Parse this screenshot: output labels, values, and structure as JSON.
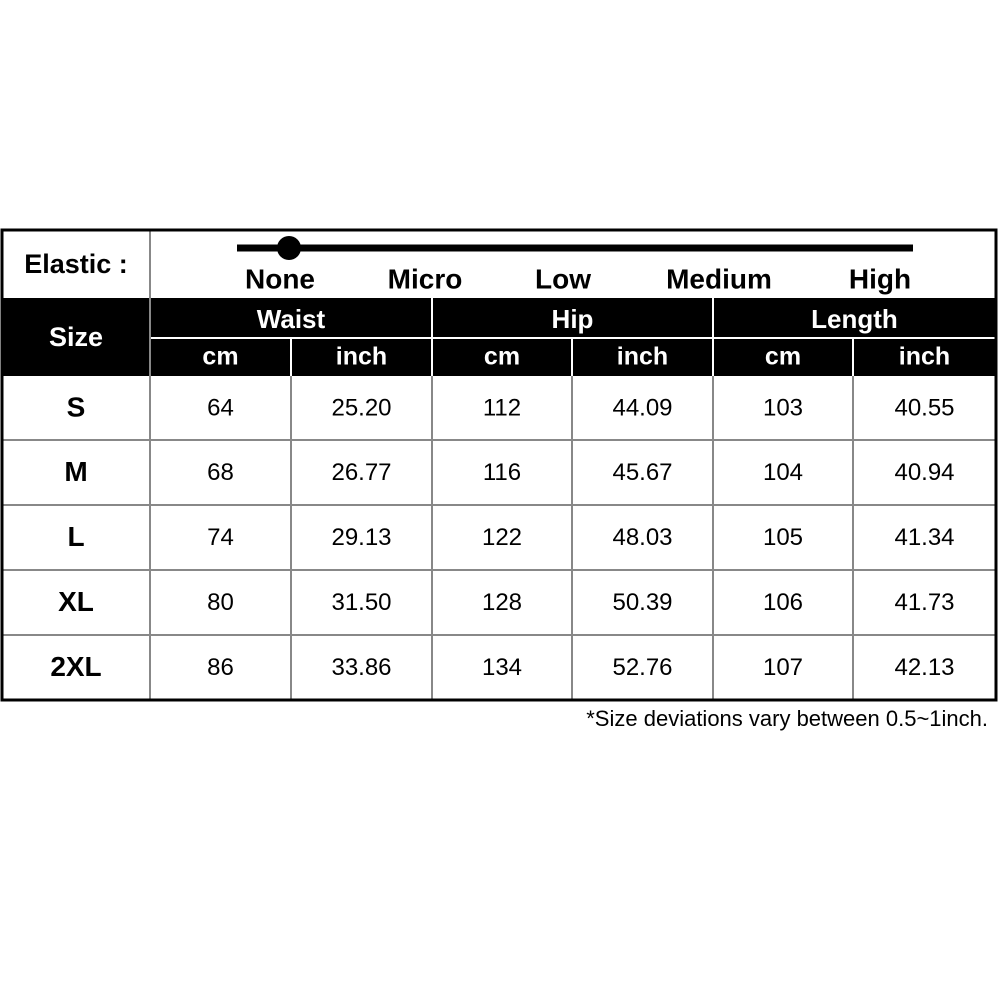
{
  "elastic": {
    "label": "Elastic :",
    "levels": [
      "None",
      "Micro",
      "Low",
      "Medium",
      "High"
    ]
  },
  "table": {
    "size_label": "Size",
    "groups": [
      {
        "name": "Waist",
        "units": [
          "cm",
          "inch"
        ]
      },
      {
        "name": "Hip",
        "units": [
          "cm",
          "inch"
        ]
      },
      {
        "name": "Length",
        "units": [
          "cm",
          "inch"
        ]
      }
    ],
    "rows": [
      [
        "S",
        "64",
        "25.20",
        "112",
        "44.09",
        "103",
        "40.55"
      ],
      [
        "M",
        "68",
        "26.77",
        "116",
        "45.67",
        "104",
        "40.94"
      ],
      [
        "L",
        "74",
        "29.13",
        "122",
        "48.03",
        "105",
        "41.34"
      ],
      [
        "XL",
        "80",
        "31.50",
        "128",
        "50.39",
        "106",
        "41.73"
      ],
      [
        "2XL",
        "86",
        "33.86",
        "134",
        "52.76",
        "107",
        "42.13"
      ]
    ]
  },
  "footnote": "*Size deviations vary between 0.5~1inch."
}
